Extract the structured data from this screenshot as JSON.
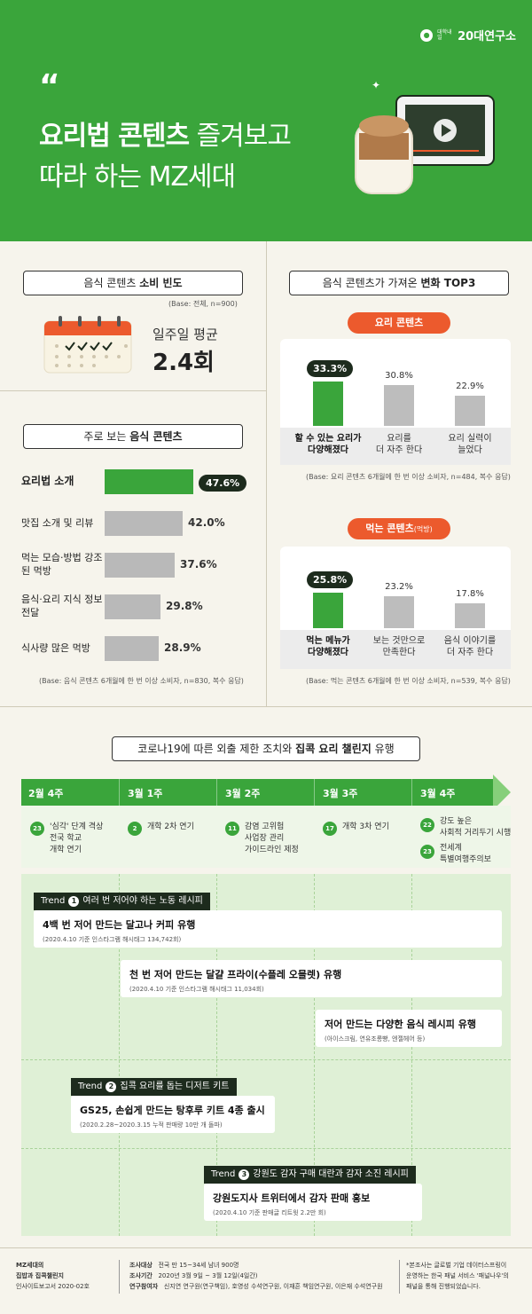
{
  "header": {
    "logo": "20대연구소",
    "logo_small": "대학내일",
    "quote_mark": "“",
    "title_bold": "요리법 콘텐츠",
    "title_light": " 즐겨보고",
    "title_line2": "따라 하는 MZ세대"
  },
  "frequency": {
    "heading_pre": "음식 콘텐츠 ",
    "heading_bold": "소비 빈도",
    "base": "(Base: 전체, n=900)",
    "label": "일주일 평균",
    "value": "2.4회"
  },
  "main_contents": {
    "heading_pre": "주로 보는 ",
    "heading_bold": "음식 콘텐츠",
    "base": "(Base: 음식 콘텐츠 6개월에 한 번 이상 소비자, n=830, 복수 응답)",
    "items": [
      {
        "label": "요리법 소개",
        "value": "47.6%",
        "pct": 47.6
      },
      {
        "label": "맛집 소개 및 리뷰",
        "value": "42.0%",
        "pct": 42.0
      },
      {
        "label": "먹는 모습·방법 강조된 먹방",
        "value": "37.6%",
        "pct": 37.6
      },
      {
        "label": "음식·요리 지식 정보 전달",
        "value": "29.8%",
        "pct": 29.8
      },
      {
        "label": "식사량 많은 먹방",
        "value": "28.9%",
        "pct": 28.9
      }
    ]
  },
  "change": {
    "heading_pre": "음식 콘텐츠가 가져온 ",
    "heading_bold": "변화 TOP3",
    "cooking": {
      "pill": "요리 콘텐츠",
      "base": "(Base: 요리 콘텐츠 6개월에 한 번 이상 소비자, n=484, 복수 응답)",
      "items": [
        {
          "cat1": "할 수 있는 요리가",
          "cat2": "다양해졌다",
          "value": "33.3%",
          "pct": 33.3
        },
        {
          "cat1": "요리를",
          "cat2": "더 자주 한다",
          "value": "30.8%",
          "pct": 30.8
        },
        {
          "cat1": "요리 실력이",
          "cat2": "늘었다",
          "value": "22.9%",
          "pct": 22.9
        }
      ]
    },
    "eating": {
      "pill": "먹는 콘텐츠",
      "pill_small": "(먹방)",
      "base": "(Base: 먹는 콘텐츠 6개월에 한 번 이상 소비자, n=539, 복수 응답)",
      "items": [
        {
          "cat1": "먹는 메뉴가",
          "cat2": "다양해졌다",
          "value": "25.8%",
          "pct": 25.8
        },
        {
          "cat1": "보는 것만으로",
          "cat2": "만족한다",
          "value": "23.2%",
          "pct": 23.2
        },
        {
          "cat1": "음식 이야기를",
          "cat2": "더 자주 한다",
          "value": "17.8%",
          "pct": 17.8
        }
      ]
    }
  },
  "timeline": {
    "title_pre": "코로나19에 따른 외출 제한 조치와 ",
    "title_bold": "집콕 요리 챌린지",
    "title_post": " 유행",
    "weeks": [
      "2월 4주",
      "3월 1주",
      "3월 2주",
      "3월 3주",
      "3월 4주"
    ],
    "events": [
      {
        "num": "23",
        "lines": [
          "'심각' 단계 격상",
          "전국 학교",
          "개학 연기"
        ]
      },
      {
        "num": "2",
        "lines": [
          "개학 2차 연기"
        ]
      },
      {
        "num": "11",
        "lines": [
          "감염 고위험",
          "사업장 관리",
          "가이드라인 제정"
        ]
      },
      {
        "num": "17",
        "lines": [
          "개학 3차 연기"
        ]
      },
      {
        "num": "22",
        "lines": [
          "강도 높은",
          "사회적 거리두기 시행"
        ]
      },
      {
        "num": "23",
        "lines": [
          "전세계",
          "특별여행주의보"
        ]
      }
    ]
  },
  "trends": [
    {
      "tag_pre": "Trend",
      "num": "1",
      "tag": "여러 번 저어야 하는 노동 레시피"
    },
    {
      "tag_pre": "Trend",
      "num": "2",
      "tag": "집콕 요리를 돕는 디저트 키트"
    },
    {
      "tag_pre": "Trend",
      "num": "3",
      "tag": "강원도 감자 구매 대란과 감자 소진 레시피"
    }
  ],
  "trend_items": [
    {
      "main": "4백 번 저어 만드는 달고나 커피 유행",
      "sub": "(2020.4.10 기준 인스타그램 해시태그 134,742회)"
    },
    {
      "main": "천 번 저어 만드는 달걀 프라이(수플레 오믈렛) 유행",
      "sub": "(2020.4.10 기준 인스타그램 해시태그 11,034회)"
    },
    {
      "main": "저어 만드는 다양한 음식 레시피 유행",
      "sub": "(아이스크림, 연유조롱빵, 엔젤헤어 등)"
    },
    {
      "main": "GS25, 손쉽게 만드는 탕후루 키트 4종 출시",
      "sub": "(2020.2.28~2020.3.15 누적 판매량 10만 개 돌파)"
    },
    {
      "main": "강원도지사 트위터에서 감자 판매 홍보",
      "sub": "(2020.4.10 기준 판매글 리트윗 2.2만 회)"
    }
  ],
  "footer": {
    "report_title1": "MZ세대의",
    "report_title2": "집밥과 집콕챌린지",
    "report_sub": "인사이트보고서 2020-02호",
    "target_label": "조사대상",
    "target": "전국 만 15~34세 남녀 900명",
    "period_label": "조사기간",
    "period": "2020년 3월 9일 ~ 3월 12일(4일간)",
    "researchers_label": "연구참여자",
    "researchers": "신지연 연구원(연구책임), 호영성 수석연구원, 이재흔 책임연구원, 이은재 수석연구원",
    "note1": "*본조사는 글로벌 기업 데이터스프링이",
    "note2": "운영하는 한국 패널 서비스 '패널나우'의",
    "note3": "패널을 통해 진행되었습니다."
  },
  "colors": {
    "brand_green": "#3aa53b",
    "accent_red": "#ec5a2d",
    "dark": "#1d2b1d",
    "gray_bar": "#b9b9b9"
  }
}
